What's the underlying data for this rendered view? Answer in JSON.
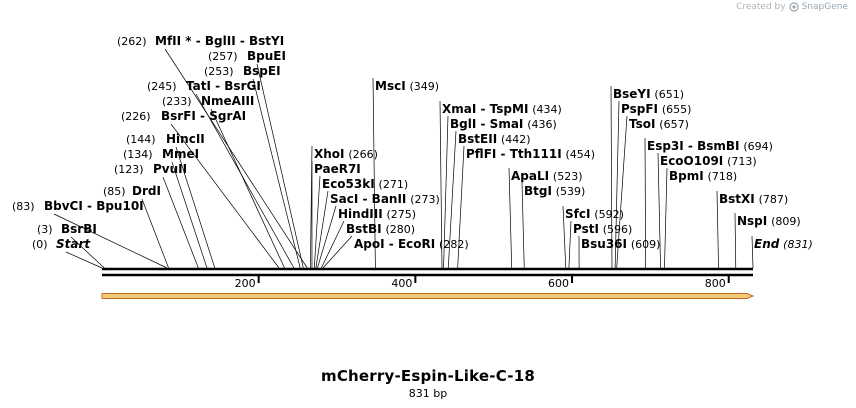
{
  "credit": {
    "prefix": "Created by",
    "brand": "SnapGene"
  },
  "plasmid": {
    "name": "mCherry-Espin-Like-C-18",
    "length_label": "831 bp",
    "length": 831
  },
  "axis": {
    "ticks": [
      200,
      400,
      600,
      800
    ]
  },
  "colors": {
    "feature_fill": "#f4c97a",
    "feature_stroke": "#c96a1c",
    "line": "#000000"
  },
  "labels": [
    {
      "pos": 0,
      "num": "(0)",
      "parts": [
        "Start"
      ],
      "italic": true
    },
    {
      "pos": 3,
      "num": "(3)",
      "parts": [
        "BsrBI"
      ]
    },
    {
      "pos": 83,
      "num": "(83)",
      "parts": [
        "BbvCI",
        "Bpu10I"
      ]
    },
    {
      "pos": 85,
      "num": "(85)",
      "parts": [
        "DrdI"
      ]
    },
    {
      "pos": 123,
      "num": "(123)",
      "parts": [
        "PvuII"
      ]
    },
    {
      "pos": 134,
      "num": "(134)",
      "parts": [
        "MmeI"
      ]
    },
    {
      "pos": 144,
      "num": "(144)",
      "parts": [
        "HincII"
      ]
    },
    {
      "pos": 226,
      "num": "(226)",
      "parts": [
        "BsrFI",
        "SgrAI"
      ]
    },
    {
      "pos": 233,
      "num": "(233)",
      "parts": [
        "NmeAIII"
      ]
    },
    {
      "pos": 245,
      "num": "(245)",
      "parts": [
        "TatI",
        "BsrGI"
      ]
    },
    {
      "pos": 253,
      "num": "(253)",
      "parts": [
        "BspEI"
      ]
    },
    {
      "pos": 257,
      "num": "(257)",
      "parts": [
        "BpuEI"
      ]
    },
    {
      "pos": 262,
      "num": "(262)",
      "parts": [
        "MfII *",
        "BglII",
        "BstYI"
      ]
    },
    {
      "pos": 266,
      "num": "(266)",
      "parts": [
        "XhoI"
      ],
      "num_after": true
    },
    {
      "pos": 268,
      "num": "",
      "parts": [
        "PaeR7I"
      ]
    },
    {
      "pos": 271,
      "num": "(271)",
      "parts": [
        "Eco53kI"
      ],
      "num_after": true
    },
    {
      "pos": 273,
      "num": "(273)",
      "parts": [
        "SacI",
        "BanII"
      ],
      "num_after": true
    },
    {
      "pos": 275,
      "num": "(275)",
      "parts": [
        "HindIII"
      ],
      "num_after": true
    },
    {
      "pos": 280,
      "num": "(280)",
      "parts": [
        "BstBI"
      ],
      "num_after": true
    },
    {
      "pos": 282,
      "num": "(282)",
      "parts": [
        "ApoI",
        "EcoRI"
      ],
      "num_after": true
    },
    {
      "pos": 349,
      "num": "(349)",
      "parts": [
        "MscI"
      ],
      "num_after": true
    },
    {
      "pos": 434,
      "num": "(434)",
      "parts": [
        "XmaI",
        "TspMI"
      ],
      "num_after": true
    },
    {
      "pos": 436,
      "num": "(436)",
      "parts": [
        "BglI",
        "SmaI"
      ],
      "num_after": true
    },
    {
      "pos": 442,
      "num": "(442)",
      "parts": [
        "BstEII"
      ],
      "num_after": true
    },
    {
      "pos": 454,
      "num": "(454)",
      "parts": [
        "PflFI",
        "Tth111I"
      ],
      "num_after": true
    },
    {
      "pos": 523,
      "num": "(523)",
      "parts": [
        "ApaLI"
      ],
      "num_after": true
    },
    {
      "pos": 539,
      "num": "(539)",
      "parts": [
        "BtgI"
      ],
      "num_after": true
    },
    {
      "pos": 592,
      "num": "(592)",
      "parts": [
        "SfcI"
      ],
      "num_after": true
    },
    {
      "pos": 596,
      "num": "(596)",
      "parts": [
        "PstI"
      ],
      "num_after": true
    },
    {
      "pos": 609,
      "num": "(609)",
      "parts": [
        "Bsu36I"
      ],
      "num_after": true
    },
    {
      "pos": 651,
      "num": "(651)",
      "parts": [
        "BseYI"
      ],
      "num_after": true
    },
    {
      "pos": 655,
      "num": "(655)",
      "parts": [
        "PspFI"
      ],
      "num_after": true
    },
    {
      "pos": 657,
      "num": "(657)",
      "parts": [
        "TsoI"
      ],
      "num_after": true
    },
    {
      "pos": 694,
      "num": "(694)",
      "parts": [
        "Esp3I",
        "BsmBI"
      ],
      "num_after": true
    },
    {
      "pos": 713,
      "num": "(713)",
      "parts": [
        "EcoO109I"
      ],
      "num_after": true
    },
    {
      "pos": 718,
      "num": "(718)",
      "parts": [
        "BpmI"
      ],
      "num_after": true
    },
    {
      "pos": 787,
      "num": "(787)",
      "parts": [
        "BstXI"
      ],
      "num_after": true
    },
    {
      "pos": 809,
      "num": "(809)",
      "parts": [
        "NspI"
      ],
      "num_after": true
    },
    {
      "pos": 831,
      "num": "(831)",
      "parts": [
        "End"
      ],
      "num_after": true,
      "italic": true
    }
  ]
}
